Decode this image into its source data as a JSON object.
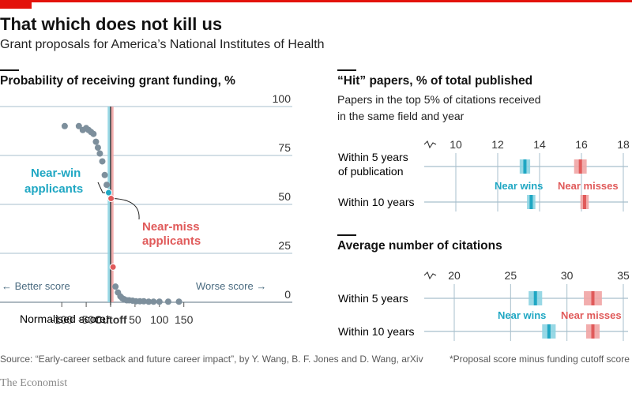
{
  "header": {
    "title": "That which does not kill us",
    "subtitle": "Grant proposals for America’s National Institutes of Health"
  },
  "left_panel": {
    "title": "Probability of receiving grant funding, %",
    "better_label": "← Better score",
    "worse_label": "Worse score →",
    "cutoff_label": "Cutoff",
    "xlabel": "Normalised score*",
    "near_win_label": [
      "Near-win",
      "applicants"
    ],
    "near_miss_label": [
      "Near-miss",
      "applicants"
    ]
  },
  "right_top": {
    "title": "“Hit” papers, % of total published",
    "subtitle_lines": [
      "Papers in the top 5% of citations received",
      "in the same field and year"
    ],
    "row_labels": [
      [
        "Within 5 years",
        "of publication"
      ],
      [
        "Within 10 years"
      ]
    ],
    "legend_win": "Near wins",
    "legend_miss": "Near misses"
  },
  "right_bottom": {
    "title": "Average number of citations",
    "row_labels": [
      [
        "Within 5 years"
      ],
      [
        "Within 10 years"
      ]
    ],
    "legend_win": "Near wins",
    "legend_miss": "Near misses"
  },
  "footer": {
    "source": "Source: “Early-career setback and future career impact”, by Y. Wang, B. F. Jones and D. Wang, arXiv",
    "footnote": "*Proposal score minus funding cutoff score",
    "brand": "The Economist"
  },
  "colors": {
    "near_win": "#1fa7c3",
    "near_win_band": "#8dd4e2",
    "near_miss": "#e05a5a",
    "near_miss_band": "#f1a4a4",
    "dots": "#7d8f9c",
    "axis_text": "#4a6b80",
    "grid": "#a7bfcc",
    "accent": "#e3120b"
  },
  "chart_data": [
    {
      "type": "scatter",
      "title": "Probability of receiving grant funding, %",
      "xlabel": "Normalised score*",
      "xlim": [
        -100,
        150
      ],
      "ylim": [
        0,
        100
      ],
      "x_ticks": [
        -100,
        -50,
        0,
        50,
        100,
        150
      ],
      "x_tick_labels": [
        "-100",
        "-50",
        "Cutoff",
        "50",
        "100",
        "150"
      ],
      "y_ticks": [
        0,
        25,
        50,
        75,
        100
      ],
      "grid": true,
      "points_x": [
        -94,
        -65,
        -57,
        -50,
        -45,
        -40,
        -35,
        -30,
        -26,
        -22,
        -17,
        -12,
        -8,
        -4,
        1,
        5,
        10,
        15,
        20,
        24,
        28,
        33,
        38,
        45,
        52,
        60,
        68,
        78,
        88,
        100,
        118,
        140
      ],
      "points_y": [
        90,
        90,
        88,
        89,
        88,
        87,
        86,
        82,
        79,
        76,
        72,
        65,
        60,
        56,
        53,
        18,
        8,
        5,
        3,
        2,
        1.5,
        1,
        1,
        0.8,
        0.5,
        0.5,
        0.5,
        0.3,
        0.3,
        0.3,
        0.3,
        0.3
      ],
      "highlight": [
        {
          "name": "Near-win applicants",
          "x": -4,
          "y": 56
        },
        {
          "name": "Near-miss applicants",
          "x": 1,
          "y": 53
        },
        {
          "name": "Near-miss applicants",
          "x": 5,
          "y": 18
        }
      ]
    },
    {
      "type": "dot_range",
      "title": "“Hit” papers, % of total published",
      "xlim": [
        8.5,
        18
      ],
      "x_ticks": [
        10,
        12,
        14,
        16,
        18
      ],
      "axis_break": true,
      "grid": true,
      "categories": [
        "Within 5 years of publication",
        "Within 10 years"
      ],
      "series": [
        {
          "name": "Near wins",
          "values": [
            13.3,
            13.6
          ],
          "interval": [
            [
              13.05,
              13.55
            ],
            [
              13.4,
              13.8
            ]
          ]
        },
        {
          "name": "Near misses",
          "values": [
            15.95,
            16.15
          ],
          "interval": [
            [
              15.65,
              16.25
            ],
            [
              15.95,
              16.35
            ]
          ]
        }
      ]
    },
    {
      "type": "dot_range",
      "title": "Average number of citations",
      "xlim": [
        15,
        35
      ],
      "x_ticks": [
        20,
        25,
        30,
        35
      ],
      "axis_break": true,
      "grid": true,
      "categories": [
        "Within 5 years",
        "Within 10 years"
      ],
      "series": [
        {
          "name": "Near wins",
          "values": [
            27.2,
            28.4
          ],
          "interval": [
            [
              26.6,
              27.8
            ],
            [
              27.8,
              29.0
            ]
          ]
        },
        {
          "name": "Near misses",
          "values": [
            32.3,
            32.3
          ],
          "interval": [
            [
              31.5,
              33.1
            ],
            [
              31.7,
              32.9
            ]
          ]
        }
      ]
    }
  ]
}
